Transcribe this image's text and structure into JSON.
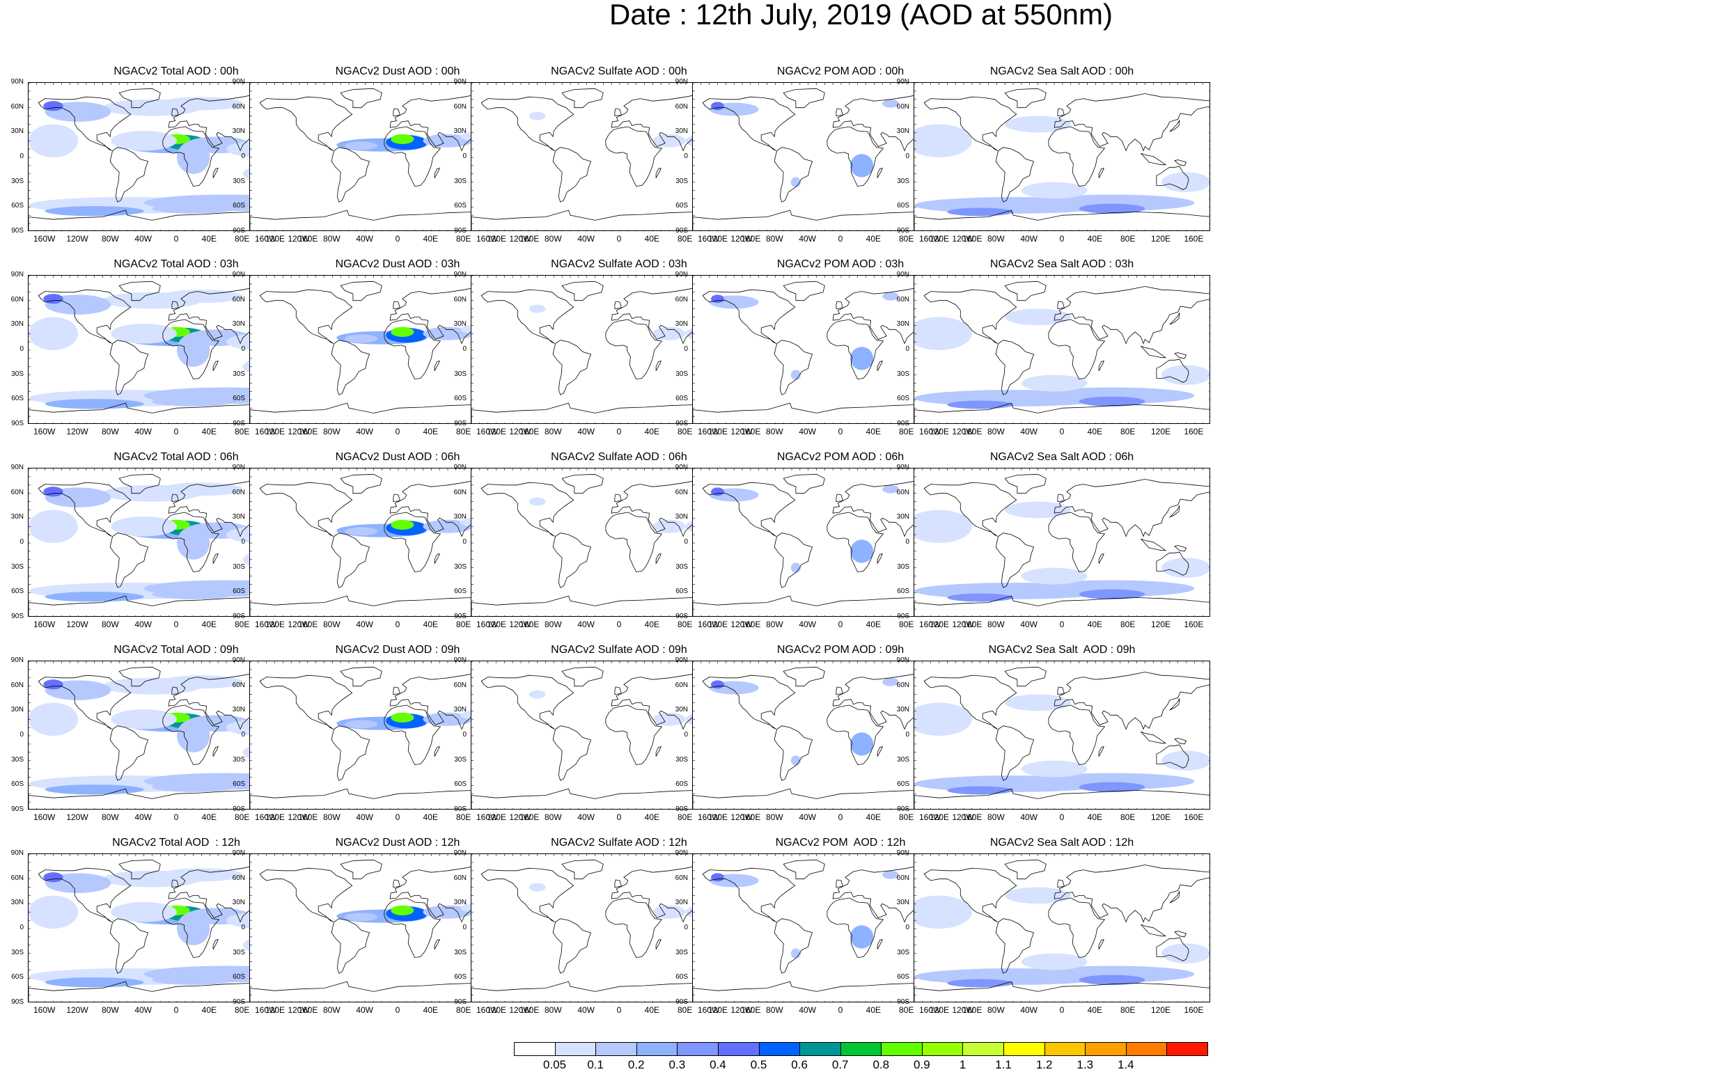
{
  "title": "Date : 12th July, 2019 (AOD at 550nm)",
  "species": [
    {
      "name": "Total",
      "color": "#5b7cff"
    },
    {
      "name": "Dust",
      "color": "#5b7cff"
    },
    {
      "name": "Sulfate",
      "color": "#5b7cff"
    },
    {
      "name": "POM",
      "color": "#5b7cff"
    },
    {
      "name": "Sea Salt",
      "color": "#5b7cff"
    }
  ],
  "panels": [
    [
      "NGACv2 Total AOD : 00h",
      "NGACv2 Dust AOD : 00h",
      "NGACv2 Sulfate AOD : 00h",
      "NGACv2 POM AOD : 00h",
      "NGACv2 Sea Salt AOD : 00h"
    ],
    [
      "NGACv2 Total AOD : 03h",
      "NGACv2 Dust AOD : 03h",
      "NGACv2 Sulfate AOD : 03h",
      "NGACv2 POM AOD : 03h",
      "NGACv2 Sea Salt AOD : 03h"
    ],
    [
      "NGACv2 Total AOD : 06h",
      "NGACv2 Dust AOD : 06h",
      "NGACv2 Sulfate AOD : 06h",
      "NGACv2 POM AOD : 06h",
      "NGACv2 Sea Salt AOD : 06h"
    ],
    [
      "NGACv2 Total AOD : 09h",
      "NGACv2 Dust AOD : 09h",
      "NGACv2 Sulfate AOD : 09h",
      "NGACv2 POM AOD : 09h",
      "NGACv2 Sea Salt  AOD : 09h"
    ],
    [
      "NGACv2 Total AOD  : 12h",
      "NGACv2 Dust AOD : 12h",
      "NGACv2 Sulfate AOD : 12h",
      "NGACv2 POM  AOD : 12h",
      "NGACv2 Sea Salt AOD : 12h"
    ]
  ],
  "lat_labels": [
    "90N",
    "60N",
    "30N",
    "0",
    "30S",
    "60S",
    "90S"
  ],
  "lon_labels": [
    "160W",
    "120W",
    "80W",
    "40W",
    "0",
    "40E",
    "80E",
    "120E",
    "160E"
  ],
  "colorbar": {
    "colors": [
      "#ffffff",
      "#d6e2ff",
      "#b5c9ff",
      "#8eb2ff",
      "#7f96ff",
      "#6370ff",
      "#0063ff",
      "#009696",
      "#00c633",
      "#63ff00",
      "#96ff00",
      "#c6ff33",
      "#ffff00",
      "#ffc600",
      "#ffa000",
      "#ff7c00",
      "#ff1900"
    ],
    "labels": [
      "0.05",
      "0.1",
      "0.2",
      "0.3",
      "0.4",
      "0.5",
      "0.6",
      "0.7",
      "0.8",
      "0.9",
      "1",
      "1.1",
      "1.2",
      "1.3",
      "1.4"
    ]
  }
}
